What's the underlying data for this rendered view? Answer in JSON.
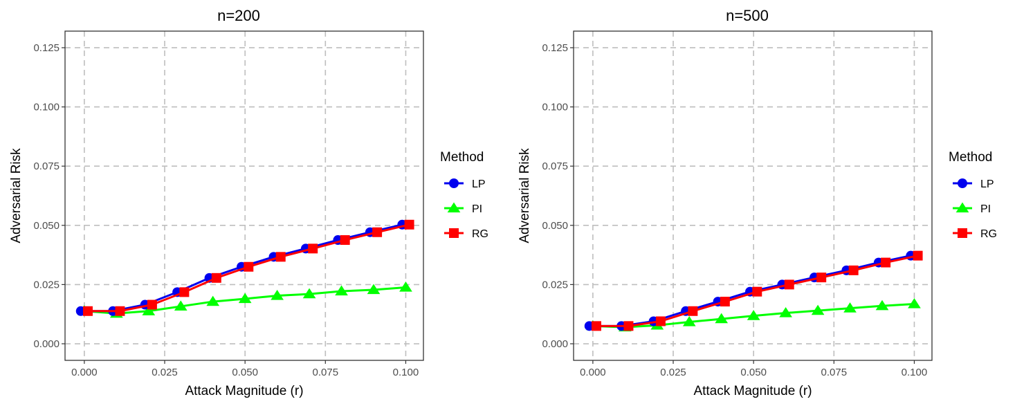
{
  "chart_data": [
    {
      "type": "line",
      "title": "n=200",
      "xlabel": "Attack Magnitude (r)",
      "ylabel": "Adversarial Risk",
      "xlim": [
        -0.006,
        0.1055
      ],
      "ylim": [
        -0.007,
        0.132
      ],
      "xticks": [
        "0.000",
        "0.025",
        "0.050",
        "0.075",
        "0.100"
      ],
      "yticks": [
        "0.000",
        "0.025",
        "0.050",
        "0.075",
        "0.100",
        "0.125"
      ],
      "grid": true,
      "legend_title": "Method",
      "legend_position": "right",
      "x": [
        0.0,
        0.01,
        0.02,
        0.03,
        0.04,
        0.05,
        0.06,
        0.07,
        0.08,
        0.09,
        0.1
      ],
      "series": [
        {
          "name": "LP",
          "color": "#0000ee",
          "marker": "circle",
          "values": [
            0.0138,
            0.0138,
            0.0165,
            0.0218,
            0.0278,
            0.0325,
            0.0367,
            0.0402,
            0.0438,
            0.0471,
            0.0503
          ]
        },
        {
          "name": "PI",
          "color": "#00ff00",
          "marker": "triangle",
          "values": [
            0.0138,
            0.0128,
            0.0138,
            0.0158,
            0.0178,
            0.019,
            0.0203,
            0.021,
            0.0222,
            0.0228,
            0.0238
          ]
        },
        {
          "name": "RG",
          "color": "#ff0000",
          "marker": "square",
          "values": [
            0.0138,
            0.0138,
            0.0165,
            0.0218,
            0.0278,
            0.0325,
            0.0367,
            0.0402,
            0.0438,
            0.0471,
            0.0503
          ]
        }
      ]
    },
    {
      "type": "line",
      "title": "n=500",
      "xlabel": "Attack Magnitude (r)",
      "ylabel": "Adversarial Risk",
      "xlim": [
        -0.006,
        0.1055
      ],
      "ylim": [
        -0.007,
        0.132
      ],
      "xticks": [
        "0.000",
        "0.025",
        "0.050",
        "0.075",
        "0.100"
      ],
      "yticks": [
        "0.000",
        "0.025",
        "0.050",
        "0.075",
        "0.100",
        "0.125"
      ],
      "grid": true,
      "legend_title": "Method",
      "legend_position": "right",
      "x": [
        0.0,
        0.01,
        0.02,
        0.03,
        0.04,
        0.05,
        0.06,
        0.07,
        0.08,
        0.09,
        0.1
      ],
      "series": [
        {
          "name": "LP",
          "color": "#0000ee",
          "marker": "circle",
          "values": [
            0.0075,
            0.0075,
            0.0095,
            0.0138,
            0.0178,
            0.022,
            0.025,
            0.028,
            0.031,
            0.0343,
            0.0372
          ]
        },
        {
          "name": "PI",
          "color": "#00ff00",
          "marker": "triangle",
          "values": [
            0.0075,
            0.007,
            0.0078,
            0.0092,
            0.0105,
            0.0118,
            0.013,
            0.014,
            0.015,
            0.016,
            0.0168
          ]
        },
        {
          "name": "RG",
          "color": "#ff0000",
          "marker": "square",
          "values": [
            0.0075,
            0.0075,
            0.0095,
            0.0138,
            0.0178,
            0.022,
            0.025,
            0.028,
            0.031,
            0.0343,
            0.0372
          ]
        }
      ]
    }
  ]
}
